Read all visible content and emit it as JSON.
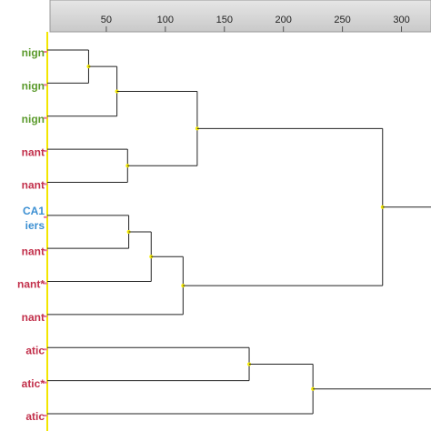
{
  "chart_data": {
    "type": "dendrogram",
    "orientation": "left-to-right",
    "xlim": [
      0,
      325
    ],
    "xticks": [
      50,
      100,
      150,
      200,
      250,
      300
    ],
    "leaves": [
      {
        "label": [
          "nign"
        ],
        "color": "#5b9a2c"
      },
      {
        "label": [
          "nign"
        ],
        "color": "#5b9a2c"
      },
      {
        "label": [
          "nign"
        ],
        "color": "#5b9a2c"
      },
      {
        "label": [
          "nant"
        ],
        "color": "#c2304b"
      },
      {
        "label": [
          "nant"
        ],
        "color": "#c2304b"
      },
      {
        "label": [
          "CA1",
          "iers"
        ],
        "color": "#3b8fd2"
      },
      {
        "label": [
          "nant"
        ],
        "color": "#c2304b"
      },
      {
        "label": [
          "nant*"
        ],
        "color": "#c2304b"
      },
      {
        "label": [
          "nant"
        ],
        "color": "#c2304b"
      },
      {
        "label": [
          "atic"
        ],
        "color": "#c2304b"
      },
      {
        "label": [
          "atic*"
        ],
        "color": "#c2304b"
      },
      {
        "label": [
          "atic"
        ],
        "color": "#c2304b"
      }
    ],
    "merges": [
      {
        "a": 0,
        "b": 1,
        "height": 35
      },
      {
        "a": 12,
        "b": 2,
        "height": 59
      },
      {
        "a": 3,
        "b": 4,
        "height": 68
      },
      {
        "a": 13,
        "b": 14,
        "height": 127
      },
      {
        "a": 5,
        "b": 6,
        "height": 69
      },
      {
        "a": 16,
        "b": 7,
        "height": 88
      },
      {
        "a": 17,
        "b": 8,
        "height": 115
      },
      {
        "a": 15,
        "b": 18,
        "height": 284
      },
      {
        "a": 9,
        "b": 10,
        "height": 171
      },
      {
        "a": 20,
        "b": 11,
        "height": 225
      }
    ]
  }
}
